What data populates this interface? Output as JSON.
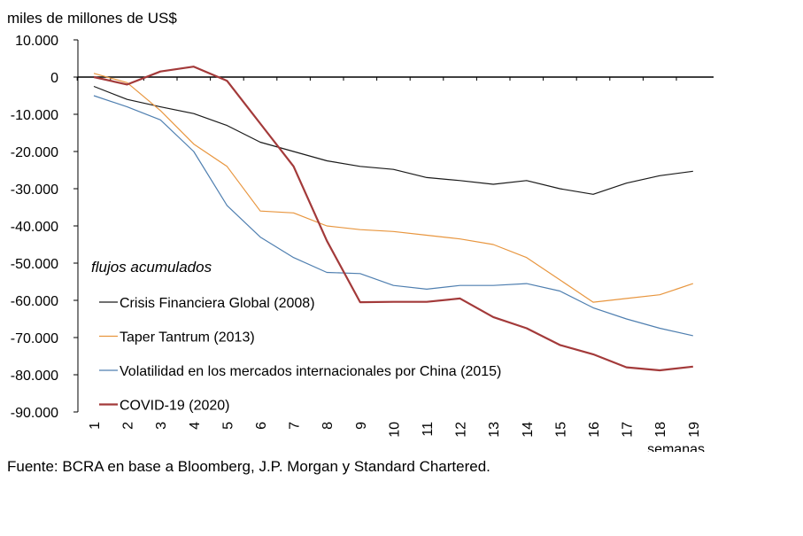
{
  "chart_data": {
    "type": "line",
    "ylabel": "miles de millones de US$",
    "xlabel": "semanas",
    "x": [
      1,
      2,
      3,
      4,
      5,
      6,
      7,
      8,
      9,
      10,
      11,
      12,
      13,
      14,
      15,
      16,
      17,
      18,
      19
    ],
    "ylim": [
      -90000,
      10000
    ],
    "yticks": [
      10000,
      0,
      -10000,
      -20000,
      -30000,
      -40000,
      -50000,
      -60000,
      -70000,
      -80000,
      -90000
    ],
    "ytick_labels": [
      "10.000",
      "0",
      "-10.000",
      "-20.000",
      "-30.000",
      "-40.000",
      "-50.000",
      "-60.000",
      "-70.000",
      "-80.000",
      "-90.000"
    ],
    "legend_title": "flujos acumulados",
    "legend_position": "bottom-left",
    "grid": false,
    "series": [
      {
        "name": "Crisis Financiera Global (2008)",
        "color": "#1a1a1a",
        "width": 1.2,
        "values": [
          -2500,
          -6000,
          -8000,
          -9800,
          -13000,
          -17500,
          -20000,
          -22500,
          -24000,
          -24800,
          -27000,
          -27800,
          -28800,
          -27800,
          -30000,
          -31500,
          -28500,
          -26500,
          -25300
        ]
      },
      {
        "name": "Taper Tantrum (2013)",
        "color": "#e8963f",
        "width": 1.2,
        "values": [
          1000,
          -1500,
          -9000,
          -18000,
          -24000,
          -36000,
          -36500,
          -40000,
          -41000,
          -41500,
          -42500,
          -43500,
          -45000,
          -48500,
          -54500,
          -60500,
          -59500,
          -58500,
          -55500
        ]
      },
      {
        "name": "Volatilidad en los mercados internacionales por China (2015)",
        "color": "#4f7fb0",
        "width": 1.2,
        "values": [
          -5000,
          -8000,
          -11500,
          -20000,
          -34500,
          -43000,
          -48500,
          -52500,
          -52800,
          -56000,
          -57000,
          -56000,
          -56000,
          -55500,
          -57500,
          -62000,
          -65000,
          -67500,
          -69500
        ]
      },
      {
        "name": "COVID-19 (2020)",
        "color": "#a33a3a",
        "width": 2.2,
        "values": [
          0,
          -2000,
          1500,
          2800,
          -1000,
          -12500,
          -24000,
          -44000,
          -60500,
          -60400,
          -60400,
          -59500,
          -64500,
          -67500,
          -72000,
          -74500,
          -78000,
          -78800,
          -77800
        ]
      }
    ]
  },
  "source": "Fuente: BCRA en base a Bloomberg, J.P. Morgan y Standard Chartered."
}
